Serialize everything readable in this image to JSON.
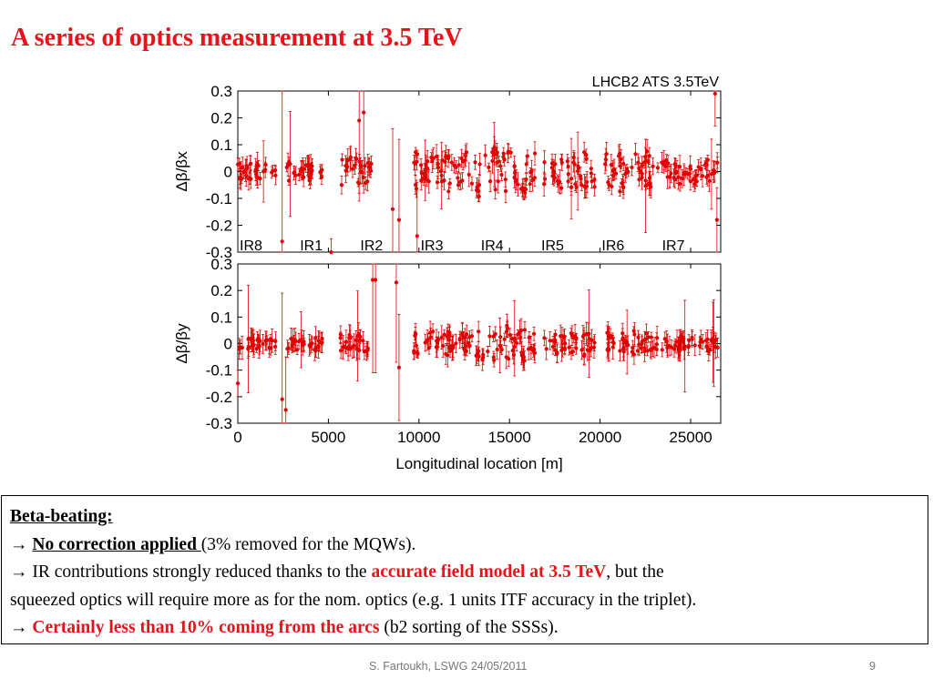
{
  "slide": {
    "title": "A series of optics measurement at 3.5 TeV"
  },
  "chart_data": {
    "type": "scatter",
    "title": "LHCB2 ATS 3.5TeV",
    "xlabel": "Longitudinal location [m]",
    "xlim": [
      0,
      26659
    ],
    "xticks": [
      "0",
      "5000",
      "10000",
      "15000",
      "20000",
      "25000"
    ],
    "yticks": [
      "0.3",
      "0.2",
      "0.1",
      "0",
      "-0.1",
      "-0.2",
      "-0.3"
    ],
    "ir_labels": [
      "IR8",
      "IR1",
      "IR2",
      "IR3",
      "IR4",
      "IR5",
      "IR6",
      "IR7"
    ],
    "ir_positions_m": [
      0,
      3330,
      6660,
      9990,
      13320,
      16650,
      19990,
      23320
    ],
    "color": "#e00000",
    "panels": [
      {
        "ylabel": "Δβ/βx",
        "ylim": [
          -0.3,
          0.3
        ],
        "outliers": [
          {
            "x": 2450,
            "y": -0.26,
            "err": 0.6
          },
          {
            "x": 5150,
            "y": -0.3,
            "err": 0.05
          },
          {
            "x": 6700,
            "y": 0.19,
            "err": 0.3
          },
          {
            "x": 6950,
            "y": 0.22,
            "err": 0.3
          },
          {
            "x": 8550,
            "y": -0.14,
            "err": 0.3
          },
          {
            "x": 8900,
            "y": -0.18,
            "err": 0.3
          },
          {
            "x": 9900,
            "y": -0.24,
            "err": 0.2
          },
          {
            "x": 26350,
            "y": 0.29,
            "err": 0.12
          },
          {
            "x": 26450,
            "y": -0.18,
            "err": 0.12
          }
        ]
      },
      {
        "ylabel": "Δβ/βy",
        "ylim": [
          -0.3,
          0.3
        ],
        "outliers": [
          {
            "x": 0,
            "y": -0.15,
            "err": 0.05
          },
          {
            "x": 2450,
            "y": -0.21,
            "err": 0.4
          },
          {
            "x": 2650,
            "y": -0.25,
            "err": 0.2
          },
          {
            "x": 7450,
            "y": 0.24,
            "err": 0.35
          },
          {
            "x": 7600,
            "y": 0.24,
            "err": 0.35
          },
          {
            "x": 8750,
            "y": 0.23,
            "err": 0.3
          },
          {
            "x": 8900,
            "y": -0.09,
            "err": 0.2
          }
        ]
      }
    ]
  },
  "notes": {
    "heading": "Beta-beating:",
    "arrow": "→",
    "line1_bold": "No correction applied ",
    "line1_rest": "(3%  removed for the MQWs).",
    "line2_pre": "IR contributions strongly reduced thanks to the ",
    "line2_red": "accurate field model at 3.5 TeV",
    "line2_post": ", but the",
    "line3": "squeezed optics will require more as for the nom. optics (e.g. 1 units ITF accuracy in the triplet).",
    "line4_red": "Certainly less than 10% coming from the arcs",
    "line4_post": " (b2 sorting of the SSSs)."
  },
  "footer": {
    "text": "S. Fartoukh, LSWG 24/05/2011",
    "page": "9"
  }
}
